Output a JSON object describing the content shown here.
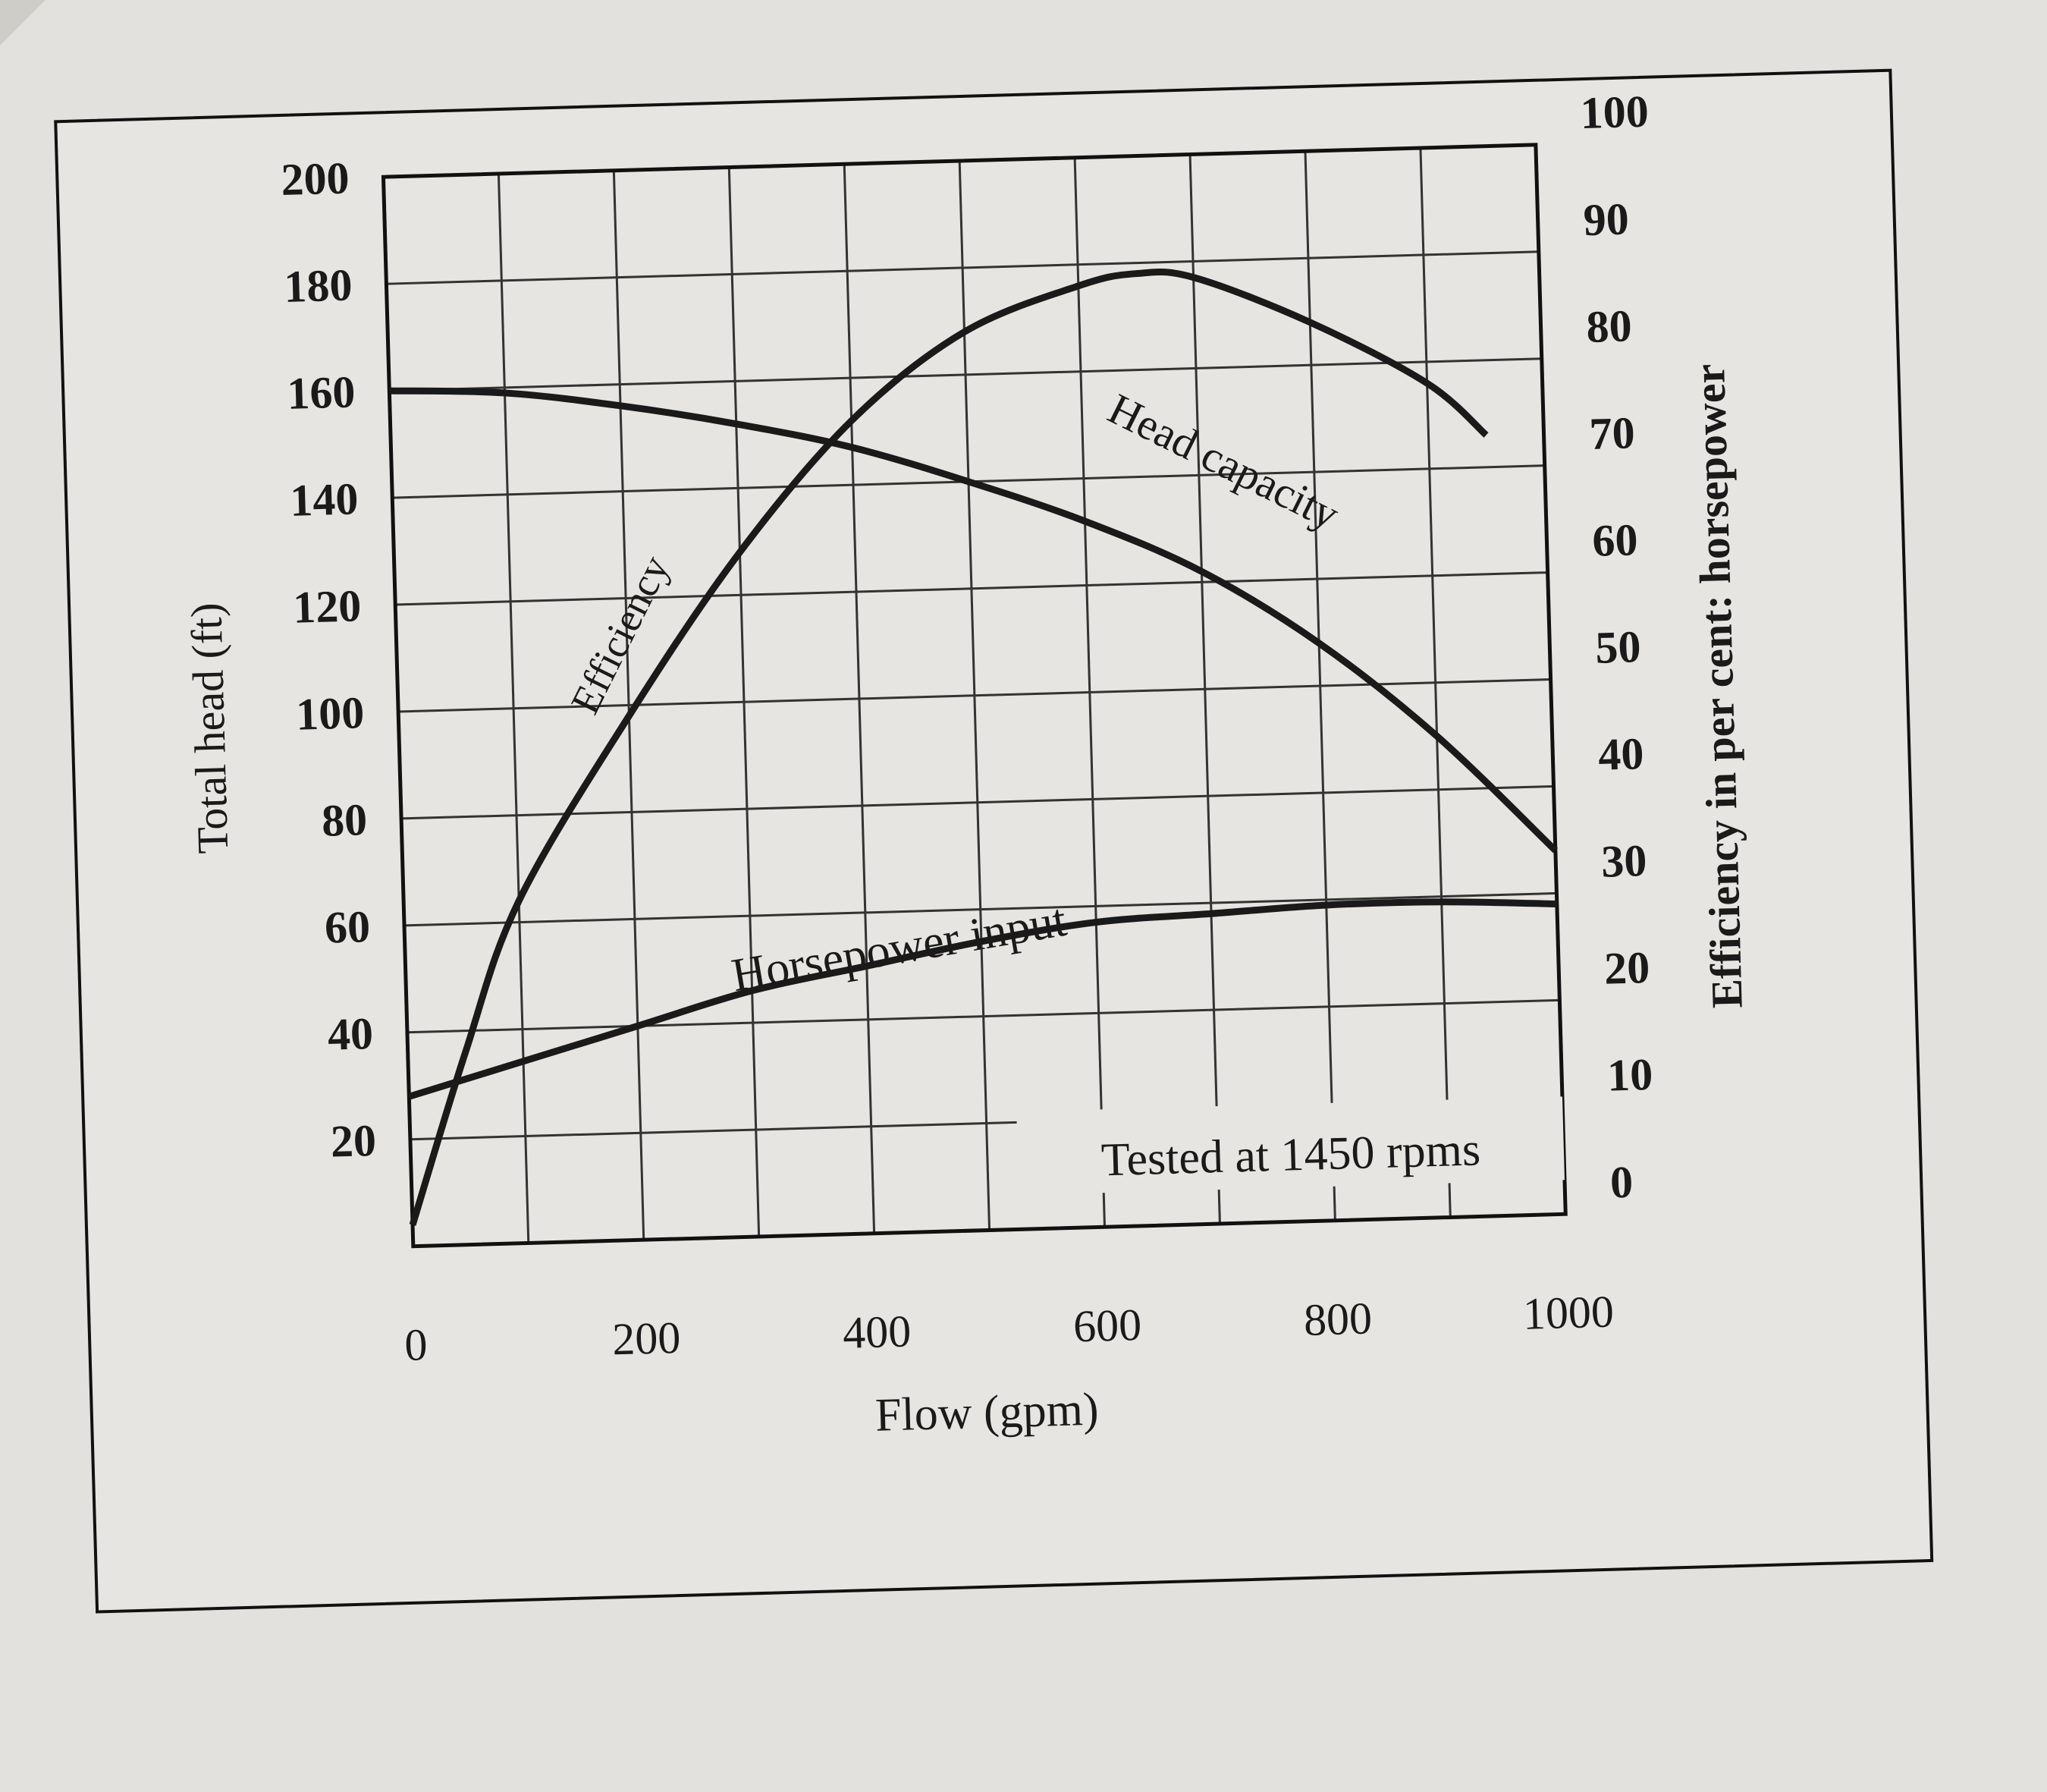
{
  "chart_data": {
    "type": "line",
    "xlabel": "Flow (gpm)",
    "ylabel": "Total head (ft)",
    "y2label": "Efficiency in per cent: horsepower",
    "xlim": [
      0,
      1000
    ],
    "ylim": [
      0,
      200
    ],
    "y2lim": [
      0,
      100
    ],
    "x_ticks": [
      "0",
      "200",
      "400",
      "600",
      "800",
      "1000"
    ],
    "y_ticks": [
      "20",
      "40",
      "60",
      "80",
      "100",
      "120",
      "140",
      "160",
      "180",
      "200"
    ],
    "y2_ticks": [
      "0",
      "10",
      "20",
      "30",
      "40",
      "50",
      "60",
      "70",
      "80",
      "90",
      "100"
    ],
    "grid": true,
    "annotation": "Tested at 1450 rpms",
    "series": [
      {
        "name": "Head capacity",
        "axis": "left",
        "x": [
          0,
          100,
          200,
          300,
          400,
          500,
          600,
          700,
          800,
          900,
          1000
        ],
        "y": [
          160,
          159,
          156,
          152,
          147,
          140,
          132,
          122,
          108,
          90,
          68
        ]
      },
      {
        "name": "Efficiency",
        "axis": "right",
        "x": [
          0,
          50,
          100,
          200,
          300,
          400,
          500,
          600,
          650,
          700,
          800,
          900,
          950
        ],
        "y": [
          2,
          18,
          32,
          49,
          64,
          76,
          84,
          88,
          89,
          88.5,
          84,
          78,
          73
        ]
      },
      {
        "name": "Horsepower input",
        "axis": "right",
        "x": [
          0,
          100,
          200,
          300,
          400,
          500,
          600,
          700,
          800,
          900,
          1000
        ],
        "y": [
          14,
          17,
          20,
          23,
          25,
          27,
          28.5,
          29,
          29.5,
          29.5,
          29
        ]
      }
    ],
    "line_color": "#1a1a1a"
  }
}
